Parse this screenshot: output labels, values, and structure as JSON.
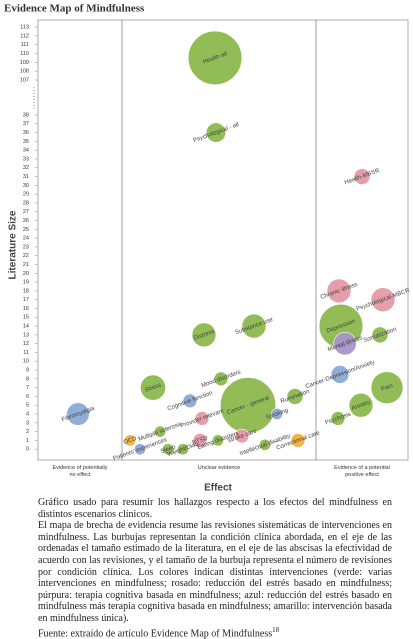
{
  "chart_data": {
    "type": "bubble",
    "title": "Evidence Map of Mindfulness",
    "y_label": "Literature Size",
    "x_label": "Effect",
    "categories": [
      "Evidence of potentially\nno effect",
      "Unclear evidence",
      "Evidence of a potential\npositive effect"
    ],
    "ylim": [
      -1,
      113
    ],
    "ybreak": [
      38,
      107
    ],
    "yticks": [
      0,
      1,
      2,
      3,
      4,
      5,
      6,
      7,
      8,
      9,
      10,
      11,
      12,
      13,
      14,
      15,
      16,
      17,
      18,
      19,
      20,
      21,
      22,
      23,
      24,
      25,
      26,
      27,
      28,
      29,
      30,
      31,
      32,
      33,
      34,
      35,
      36,
      37,
      38,
      107,
      108,
      109,
      110,
      111,
      112,
      113
    ],
    "bubbles": [
      {
        "label": "Health-all",
        "category": "Unclear evidence",
        "y": 109.5,
        "size": 45,
        "color": "#8db94e"
      },
      {
        "label": "Cancer - general",
        "category": "Unclear evidence",
        "y": 5,
        "size": 48,
        "color": "#8db94e"
      },
      {
        "label": "Depression",
        "category": "Evidence of a potential\npositive effect",
        "y": 14,
        "size": 30,
        "color": "#8db94e"
      },
      {
        "label": "Pain",
        "category": "Evidence of a potential\npositive effect",
        "y": 7,
        "size": 16,
        "color": "#8db94e"
      },
      {
        "label": "Fibromyalgia",
        "category": "Evidence of potentially\nno effect",
        "y": 4,
        "size": 8,
        "color": "#8caad8"
      },
      {
        "label": "Stress",
        "category": "Unclear evidence",
        "y": 7,
        "size": 10,
        "color": "#8db94e"
      },
      {
        "label": "Distress",
        "category": "Unclear evidence",
        "y": 13,
        "size": 9,
        "color": "#8db94e"
      },
      {
        "label": "Substance use",
        "category": "Unclear evidence",
        "y": 14,
        "size": 9,
        "color": "#8db94e"
      },
      {
        "label": "Psychological - all",
        "category": "Unclear evidence",
        "y": 36,
        "size": 6,
        "color": "#8db94e"
      },
      {
        "label": "Mood disorders",
        "category": "Unclear evidence",
        "y": 8,
        "size": 3,
        "color": "#8db94e"
      },
      {
        "label": "Cognitive function",
        "category": "Unclear evidence",
        "y": 5.5,
        "size": 3,
        "color": "#8caad8"
      },
      {
        "label": "Rumination",
        "category": "Unclear evidence",
        "y": 6,
        "size": 4,
        "color": "#8db94e"
      },
      {
        "label": "Smoking",
        "category": "Unclear evidence",
        "y": 4,
        "size": 2,
        "color": "#8caad8"
      },
      {
        "label": "Provider relevant",
        "category": "Unclear evidence",
        "y": 3.5,
        "size": 3,
        "color": "#e59aa6"
      },
      {
        "label": "OCD",
        "category": "Unclear evidence",
        "y": 1,
        "size": 2,
        "color": "#f1b23b"
      },
      {
        "label": "Patients' experiences",
        "category": "Unclear evidence",
        "y": 0,
        "size": 2,
        "color": "#8caad8"
      },
      {
        "label": "Multiple sclerosis",
        "category": "Unclear evidence",
        "y": 2,
        "size": 2,
        "color": "#8db94e"
      },
      {
        "label": "Sleep",
        "category": "Unclear evidence",
        "y": 0,
        "size": 2,
        "color": "#8db94e"
      },
      {
        "label": "Weight/Diab",
        "category": "Unclear evidence",
        "y": 0,
        "size": 2,
        "color": "#8db94e"
      },
      {
        "label": "PTSD",
        "category": "Unclear evidence",
        "y": 1,
        "size": 3,
        "color": "#e59aa6"
      },
      {
        "label": "Eating disorders",
        "category": "Unclear evidence",
        "y": 1,
        "size": 2,
        "color": "#8db94e"
      },
      {
        "label": "Stroke care",
        "category": "Unclear evidence",
        "y": 1.5,
        "size": 3,
        "color": "#e59aa6"
      },
      {
        "label": "Intellectual disability",
        "category": "Unclear evidence",
        "y": 0.5,
        "size": 2,
        "color": "#8db94e"
      },
      {
        "label": "Correctional care",
        "category": "Unclear evidence",
        "y": 1,
        "size": 3,
        "color": "#f1b23b"
      },
      {
        "label": "Health-MBSR",
        "category": "Evidence of a potential\npositive effect",
        "y": 31,
        "size": 4,
        "color": "#e59aa6"
      },
      {
        "label": "Chronic illness",
        "category": "Evidence of a potential\npositive effect",
        "y": 18,
        "size": 9,
        "color": "#e59aa6"
      },
      {
        "label": "Psychological-MBCR",
        "category": "Evidence of a potential\npositive effect",
        "y": 17,
        "size": 9,
        "color": "#e59aa6"
      },
      {
        "label": "Mental illness",
        "category": "Evidence of a potential\npositive effect",
        "y": 12,
        "size": 8,
        "color": "#a994c9"
      },
      {
        "label": "Somatization",
        "category": "Evidence of a potential\npositive effect",
        "y": 13,
        "size": 4,
        "color": "#8db94e"
      },
      {
        "label": "Cancer-Depression/Anxiety",
        "category": "Evidence of a potential\npositive effect",
        "y": 8.5,
        "size": 5,
        "color": "#8caad8"
      },
      {
        "label": "Anxiety",
        "category": "Evidence of a potential\npositive effect",
        "y": 5,
        "size": 9,
        "color": "#8db94e"
      },
      {
        "label": "Psychosis",
        "category": "Evidence of a potential\npositive effect",
        "y": 3.5,
        "size": 3,
        "color": "#8db94e"
      }
    ]
  },
  "caption": {
    "paragraphs": [
      "Gráfico usado para resumir los hallazgos respecto a los efectos del mindfulness en distintos escenarios clínicos.",
      "El mapa de brecha de evidencia resume las revisiones sistemáticas de intervenciones en mindfulness. Las burbujas representan la condición clínica abordada, en el eje de las ordenadas el tamaño estimado de la literatura, en el eje de las abscisas la efectividad de acuerdo con las revisiones, y el tamaño de la burbuja representa el número de revisiones por condición clínica. Los colores indican distintas intervenciones (verde: varias intervenciones en mindfulness; rosado: reducción del estrés basado en mindfulness; púrpura: terapia cognitiva basada en mindfulness; azul: reducción del estrés basado en mindfulness más terapia cognitiva basada en mindfulness; amarillo: intervención basada en mindfulness única)."
    ],
    "source": "Fuente: extraído de artículo Evidence Map of Mindfulness",
    "source_ref": "18"
  }
}
